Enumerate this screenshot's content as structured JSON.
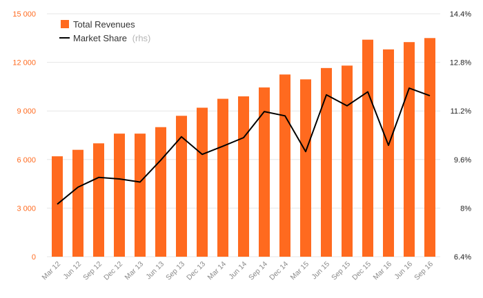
{
  "chart_data": {
    "type": "bar",
    "categories": [
      "Mar 12",
      "Jun 12",
      "Sep 12",
      "Dec 12",
      "Mar 13",
      "Jun 13",
      "Sep 13",
      "Dec 13",
      "Mar 14",
      "Jun 14",
      "Sep 14",
      "Dec 14",
      "Mar 15",
      "Jun 15",
      "Sep 15",
      "Dec 15",
      "Mar 16",
      "Jun 16",
      "Sep 16"
    ],
    "series": [
      {
        "name": "Total Revenues",
        "type": "bar",
        "axis": "left",
        "color": "#ff6a1f",
        "values": [
          6200,
          6600,
          7000,
          7600,
          7600,
          8000,
          8700,
          9200,
          9750,
          9900,
          10450,
          11250,
          10950,
          11650,
          11800,
          13400,
          12800,
          13250,
          13500
        ]
      },
      {
        "name": "Market Share",
        "name_suffix": "(rhs)",
        "type": "line",
        "axis": "right",
        "color": "#000000",
        "values": [
          8.13,
          8.69,
          9.01,
          8.96,
          8.86,
          9.58,
          10.35,
          9.77,
          10.04,
          10.32,
          11.18,
          11.04,
          9.86,
          11.73,
          11.37,
          11.83,
          10.07,
          11.95,
          11.7
        ]
      }
    ],
    "y_left": {
      "ylim": [
        0,
        15000
      ],
      "ticks": [
        0,
        3000,
        6000,
        9000,
        12000,
        15000
      ],
      "tick_labels": [
        "0",
        "3 000",
        "6 000",
        "9 000",
        "12 000",
        "15 000"
      ]
    },
    "y_right": {
      "ylim": [
        6.4,
        14.4
      ],
      "ticks": [
        6.4,
        8,
        9.6,
        11.2,
        12.8,
        14.4
      ],
      "tick_labels": [
        "6.4%",
        "8%",
        "9.6%",
        "11.2%",
        "12.8%",
        "14.4%"
      ]
    },
    "grid": true,
    "legend": "top-left"
  }
}
